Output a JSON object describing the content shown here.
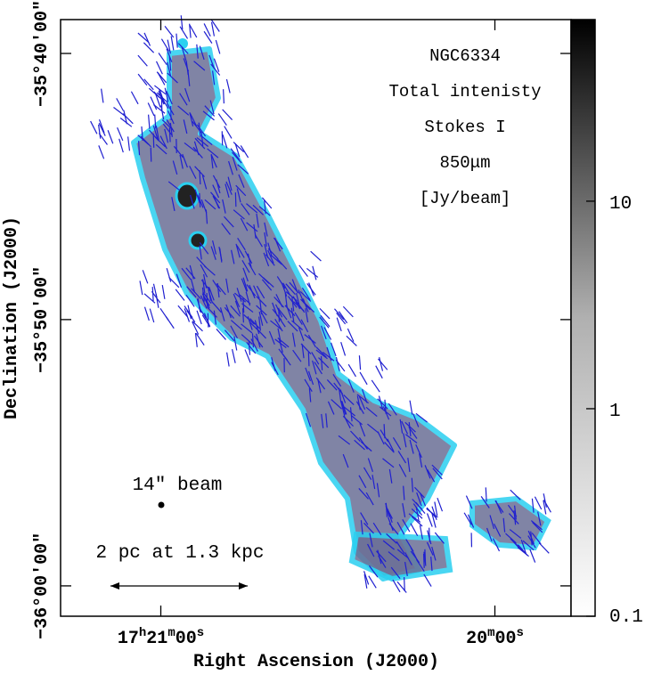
{
  "chart_data": {
    "type": "image",
    "xlabel": "Right Ascension (J2000)",
    "ylabel": "Declination (J2000)",
    "xlim": [
      260.325,
      259.943
    ],
    "ylim": [
      -36.019,
      -35.6455
    ],
    "xticks": [
      {
        "value": 260.25,
        "label": "17h21m00s"
      },
      {
        "value": 260.0,
        "label": "20m00s"
      }
    ],
    "yticks": [
      {
        "value": -35.6667,
        "label": "−35°40′00″"
      },
      {
        "value": -35.8333,
        "label": "−35°50′00″"
      },
      {
        "value": -36.0,
        "label": "−36°00′00″"
      }
    ],
    "colorbar": {
      "scale": "log",
      "lim": [
        0.1,
        75
      ],
      "ticks": [
        0.1,
        1,
        10
      ]
    },
    "annotations": [
      "NGC6334",
      "Total intenisty",
      "Stokes I",
      "850μm",
      "[Jy/beam]"
    ],
    "beam_label": "14″ beam",
    "scale_bar_label": "2 pc at 1.3 kpc"
  }
}
